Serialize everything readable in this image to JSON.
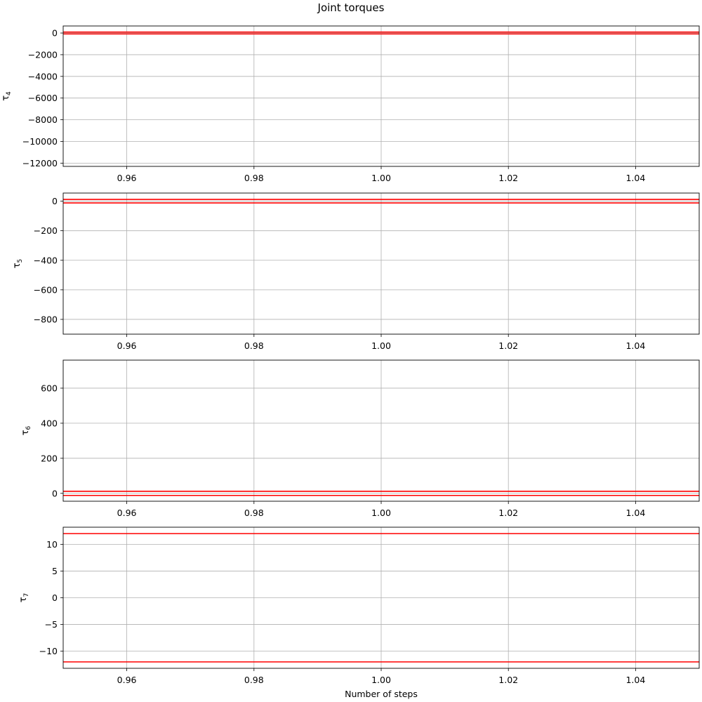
{
  "figure": {
    "title": "Joint torques",
    "xlabel": "Number of steps"
  },
  "colors": {
    "line": "#ff0000",
    "grid": "#b0b0b0",
    "axes": "#000000"
  },
  "chart_data": [
    {
      "type": "line",
      "ylabel": "τ",
      "ylabel_sub": "4",
      "xlim": [
        0.95,
        1.05
      ],
      "ylim": [
        -12300,
        650
      ],
      "x_ticks": [
        0.96,
        0.98,
        1.0,
        1.02,
        1.04
      ],
      "x_tick_labels": [
        "0.96",
        "0.98",
        "1.00",
        "1.02",
        "1.04"
      ],
      "y_ticks": [
        0,
        -2000,
        -4000,
        -6000,
        -8000,
        -10000,
        -12000
      ],
      "y_tick_labels": [
        "0",
        "−2000",
        "−4000",
        "−6000",
        "−8000",
        "−10000",
        "−12000"
      ],
      "grid": true,
      "series": [
        {
          "x": [
            0.95,
            1.05
          ],
          "y": [
            87,
            87
          ]
        },
        {
          "x": [
            0.95,
            1.05
          ],
          "y": [
            -87,
            -87
          ]
        }
      ]
    },
    {
      "type": "line",
      "ylabel": "τ",
      "ylabel_sub": "5",
      "xlim": [
        0.95,
        1.05
      ],
      "ylim": [
        -900,
        55
      ],
      "x_ticks": [
        0.96,
        0.98,
        1.0,
        1.02,
        1.04
      ],
      "x_tick_labels": [
        "0.96",
        "0.98",
        "1.00",
        "1.02",
        "1.04"
      ],
      "y_ticks": [
        0,
        -200,
        -400,
        -600,
        -800
      ],
      "y_tick_labels": [
        "0",
        "−200",
        "−400",
        "−600",
        "−800"
      ],
      "grid": true,
      "series": [
        {
          "x": [
            0.95,
            1.05
          ],
          "y": [
            12,
            12
          ]
        },
        {
          "x": [
            0.95,
            1.05
          ],
          "y": [
            -12,
            -12
          ]
        }
      ]
    },
    {
      "type": "line",
      "ylabel": "τ",
      "ylabel_sub": "6",
      "xlim": [
        0.95,
        1.05
      ],
      "ylim": [
        -45,
        760
      ],
      "x_ticks": [
        0.96,
        0.98,
        1.0,
        1.02,
        1.04
      ],
      "x_tick_labels": [
        "0.96",
        "0.98",
        "1.00",
        "1.02",
        "1.04"
      ],
      "y_ticks": [
        0,
        200,
        400,
        600
      ],
      "y_tick_labels": [
        "0",
        "200",
        "400",
        "600"
      ],
      "grid": true,
      "series": [
        {
          "x": [
            0.95,
            1.05
          ],
          "y": [
            12,
            12
          ]
        },
        {
          "x": [
            0.95,
            1.05
          ],
          "y": [
            -12,
            -12
          ]
        }
      ]
    },
    {
      "type": "line",
      "ylabel": "τ",
      "ylabel_sub": "7",
      "xlim": [
        0.95,
        1.05
      ],
      "ylim": [
        -13.2,
        13.2
      ],
      "x_ticks": [
        0.96,
        0.98,
        1.0,
        1.02,
        1.04
      ],
      "x_tick_labels": [
        "0.96",
        "0.98",
        "1.00",
        "1.02",
        "1.04"
      ],
      "y_ticks": [
        10,
        5,
        0,
        -5,
        -10
      ],
      "y_tick_labels": [
        "10",
        "5",
        "0",
        "−5",
        "−10"
      ],
      "grid": true,
      "series": [
        {
          "x": [
            0.95,
            1.05
          ],
          "y": [
            12,
            12
          ]
        },
        {
          "x": [
            0.95,
            1.05
          ],
          "y": [
            -12,
            -12
          ]
        }
      ]
    }
  ]
}
